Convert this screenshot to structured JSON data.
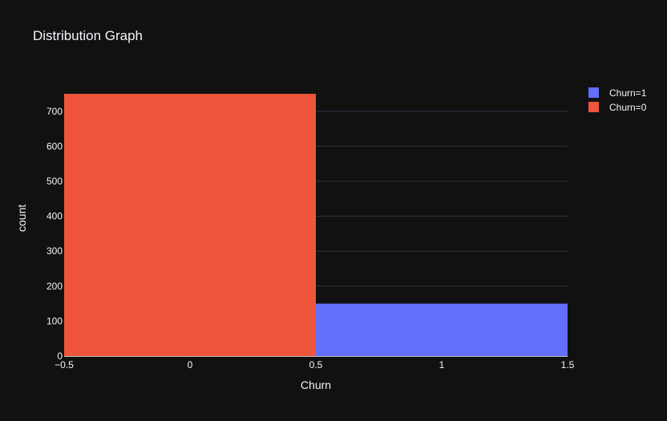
{
  "chart_data": {
    "type": "bar",
    "title": "Distribution Graph",
    "xlabel": "Churn",
    "ylabel": "count",
    "xlim": [
      -0.5,
      1.5
    ],
    "ylim": [
      0,
      750
    ],
    "x_ticks": [
      -0.5,
      0,
      0.5,
      1,
      1.5
    ],
    "x_tick_labels": [
      "−0.5",
      "0",
      "0.5",
      "1",
      "1.5"
    ],
    "y_ticks": [
      0,
      100,
      200,
      300,
      400,
      500,
      600,
      700
    ],
    "y_tick_labels": [
      "0",
      "100",
      "200",
      "300",
      "400",
      "500",
      "600",
      "700"
    ],
    "grid": true,
    "legend_position": "top-right",
    "series": [
      {
        "name": "Churn=1",
        "color": "#636efa",
        "bins": [
          {
            "x0": 0.5,
            "x1": 1.5,
            "count": 150
          }
        ]
      },
      {
        "name": "Churn=0",
        "color": "#ef553b",
        "bins": [
          {
            "x0": -0.5,
            "x1": 0.5,
            "count": 750
          }
        ]
      }
    ]
  },
  "colors": {
    "background": "#111111",
    "grid": "#283442",
    "text": "#f2f5fa"
  }
}
